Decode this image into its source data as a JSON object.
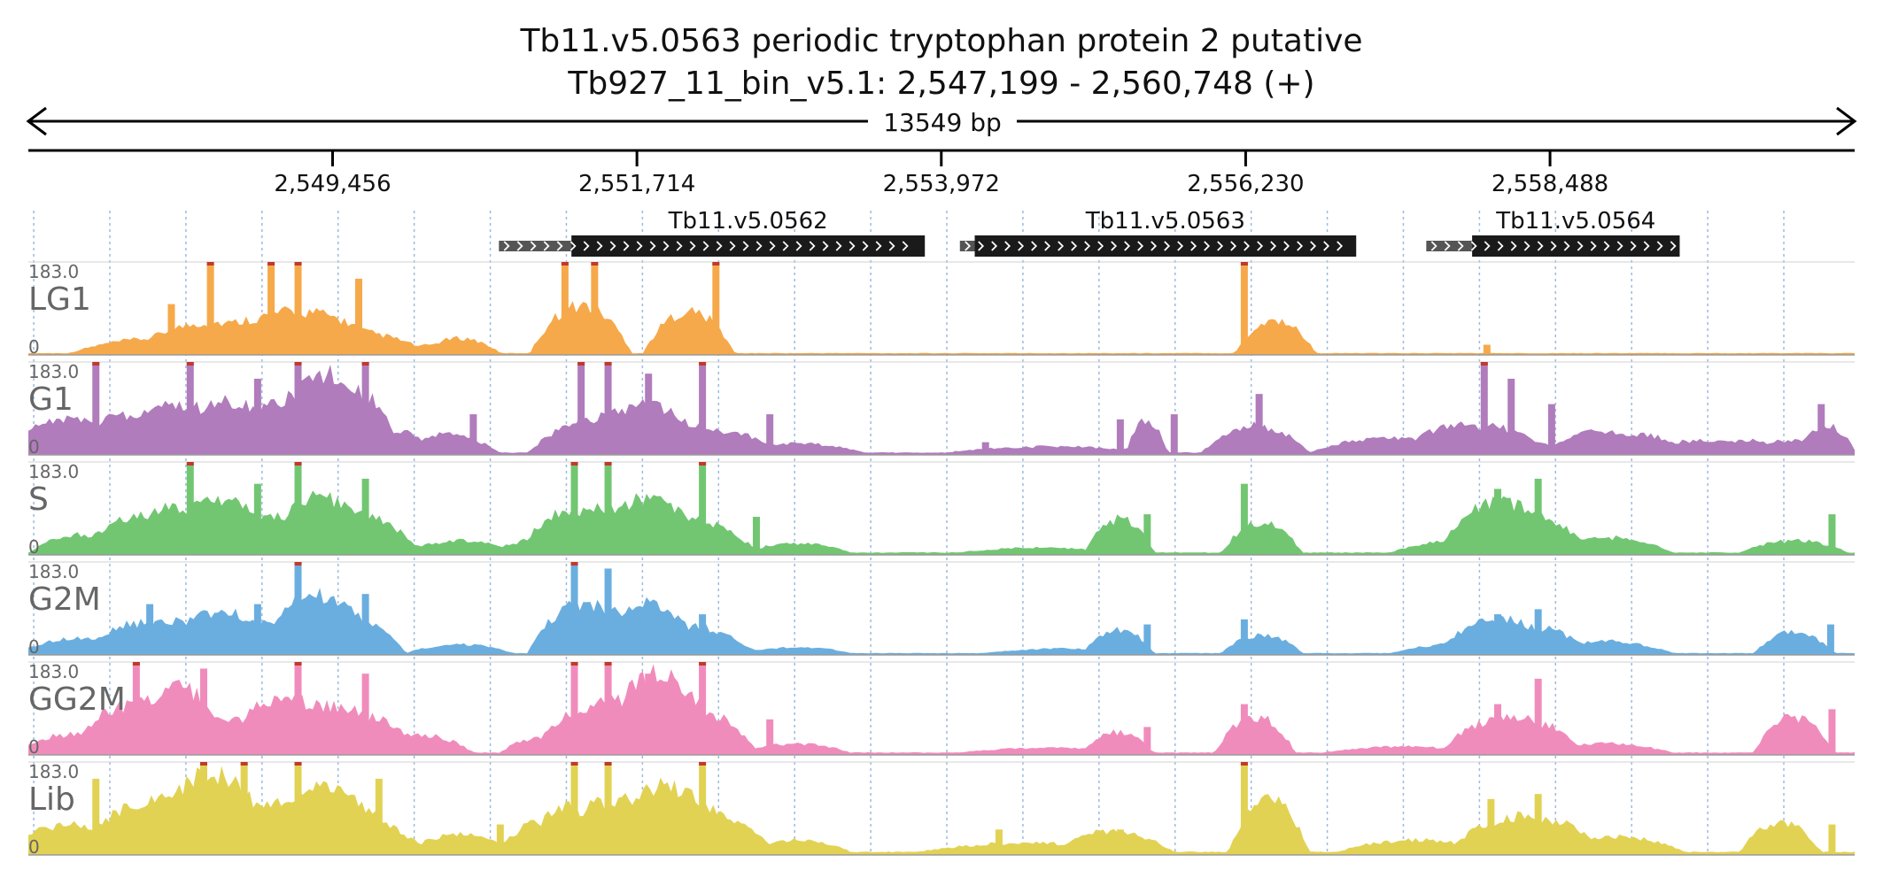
{
  "chart_data": {
    "type": "area",
    "title_line1": "Tb11.v5.0563  periodic tryptophan protein 2  putative",
    "title_line2": "Tb927_11_bin_v5.1: 2,547,199 - 2,560,748 (+)",
    "span_label": "13549 bp",
    "region": {
      "start": 2547199,
      "end": 2560748
    },
    "x_ticks": [
      {
        "pos": 2549456,
        "label": "2,549,456"
      },
      {
        "pos": 2551714,
        "label": "2,551,714"
      },
      {
        "pos": 2553972,
        "label": "2,553,972"
      },
      {
        "pos": 2556230,
        "label": "2,556,230"
      },
      {
        "pos": 2558488,
        "label": "2,558,488"
      }
    ],
    "genes": [
      {
        "name": "Tb11.v5.0562",
        "utr_start": 2550690,
        "start": 2551228,
        "end": 2553850
      },
      {
        "name": "Tb11.v5.0563",
        "utr_start": 2554110,
        "start": 2554220,
        "end": 2557050
      },
      {
        "name": "Tb11.v5.0564",
        "utr_start": 2557570,
        "start": 2557910,
        "end": 2559450
      }
    ],
    "ylim": [
      0,
      183.0
    ],
    "ymax_label": "183.0",
    "ymin_label": "0",
    "grid": true,
    "series": [
      {
        "name": "LG1",
        "color": "#f6a94a",
        "peaks": [
          [
            2548200,
            25,
            700
          ],
          [
            2548900,
            40,
            800
          ],
          [
            2549456,
            40,
            750
          ],
          [
            2550400,
            25,
            300
          ],
          [
            2551300,
            80,
            380
          ],
          [
            2552100,
            70,
            340
          ],
          [
            2556450,
            55,
            300
          ]
        ],
        "spikes": [
          [
            2548260,
            100
          ],
          [
            2548550,
            183
          ],
          [
            2549000,
            183
          ],
          [
            2549200,
            183
          ],
          [
            2549650,
            150
          ],
          [
            2551180,
            183
          ],
          [
            2551400,
            183
          ],
          [
            2552300,
            183
          ],
          [
            2556220,
            183
          ],
          [
            2558020,
            20
          ]
        ],
        "base": 3
      },
      {
        "name": "G1",
        "color": "#b07cbc",
        "peaks": [
          [
            2547500,
            55,
            500
          ],
          [
            2548300,
            80,
            600
          ],
          [
            2549200,
            85,
            700
          ],
          [
            2549600,
            60,
            500
          ],
          [
            2550300,
            30,
            400
          ],
          [
            2551500,
            60,
            600
          ],
          [
            2552100,
            45,
            600
          ],
          [
            2552900,
            15,
            500
          ],
          [
            2554800,
            10,
            800
          ],
          [
            2556300,
            45,
            400
          ],
          [
            2557300,
            25,
            600
          ],
          [
            2558000,
            45,
            500
          ],
          [
            2558900,
            35,
            500
          ],
          [
            2559600,
            20,
            500
          ],
          [
            2560300,
            20,
            500
          ],
          [
            2560550,
            30,
            200
          ],
          [
            2555500,
            50,
            150
          ]
        ],
        "spikes": [
          [
            2547700,
            183
          ],
          [
            2548400,
            183
          ],
          [
            2548900,
            150
          ],
          [
            2549200,
            183
          ],
          [
            2549700,
            183
          ],
          [
            2550500,
            80
          ],
          [
            2551300,
            183
          ],
          [
            2551500,
            183
          ],
          [
            2551800,
            160
          ],
          [
            2552200,
            183
          ],
          [
            2552700,
            80
          ],
          [
            2553200,
            10
          ],
          [
            2554300,
            25
          ],
          [
            2555300,
            70
          ],
          [
            2555700,
            80
          ],
          [
            2556330,
            120
          ],
          [
            2557600,
            20
          ],
          [
            2558000,
            183
          ],
          [
            2558200,
            150
          ],
          [
            2558500,
            100
          ],
          [
            2560500,
            100
          ]
        ],
        "base": 4
      },
      {
        "name": "S",
        "color": "#72c672",
        "peaks": [
          [
            2547600,
            30,
            400
          ],
          [
            2548300,
            75,
            600
          ],
          [
            2549000,
            60,
            600
          ],
          [
            2549600,
            70,
            500
          ],
          [
            2550400,
            20,
            400
          ],
          [
            2551000,
            25,
            300
          ],
          [
            2551500,
            75,
            600
          ],
          [
            2552100,
            55,
            500
          ],
          [
            2552900,
            15,
            400
          ],
          [
            2554700,
            8,
            600
          ],
          [
            2555300,
            55,
            250
          ],
          [
            2556350,
            50,
            300
          ],
          [
            2557800,
            20,
            500
          ],
          [
            2558200,
            75,
            500
          ],
          [
            2558900,
            25,
            500
          ],
          [
            2560300,
            20,
            400
          ]
        ],
        "spikes": [
          [
            2548400,
            183
          ],
          [
            2548900,
            140
          ],
          [
            2549200,
            183
          ],
          [
            2549700,
            150
          ],
          [
            2551250,
            183
          ],
          [
            2551500,
            183
          ],
          [
            2552200,
            183
          ],
          [
            2552600,
            75
          ],
          [
            2555500,
            80
          ],
          [
            2556220,
            140
          ],
          [
            2558100,
            130
          ],
          [
            2558400,
            150
          ],
          [
            2560580,
            80
          ]
        ],
        "base": 4
      },
      {
        "name": "G2M",
        "color": "#6aaee0",
        "peaks": [
          [
            2547600,
            25,
            500
          ],
          [
            2548300,
            55,
            600
          ],
          [
            2549000,
            50,
            600
          ],
          [
            2549500,
            70,
            500
          ],
          [
            2550400,
            15,
            400
          ],
          [
            2551200,
            25,
            300
          ],
          [
            2551500,
            70,
            600
          ],
          [
            2552100,
            45,
            500
          ],
          [
            2552900,
            10,
            400
          ],
          [
            2554900,
            8,
            600
          ],
          [
            2555300,
            35,
            250
          ],
          [
            2556350,
            30,
            300
          ],
          [
            2557800,
            15,
            500
          ],
          [
            2558200,
            50,
            500
          ],
          [
            2558900,
            20,
            500
          ],
          [
            2560300,
            35,
            300
          ]
        ],
        "spikes": [
          [
            2548100,
            100
          ],
          [
            2548900,
            100
          ],
          [
            2549200,
            183
          ],
          [
            2549700,
            120
          ],
          [
            2551250,
            183
          ],
          [
            2551500,
            170
          ],
          [
            2552200,
            80
          ],
          [
            2555500,
            60
          ],
          [
            2556220,
            70
          ],
          [
            2558100,
            80
          ],
          [
            2558400,
            90
          ],
          [
            2560570,
            60
          ]
        ],
        "base": 3
      },
      {
        "name": "GG2M",
        "color": "#f08cbc",
        "peaks": [
          [
            2547500,
            30,
            400
          ],
          [
            2548100,
            90,
            500
          ],
          [
            2548700,
            60,
            600
          ],
          [
            2549400,
            80,
            600
          ],
          [
            2550100,
            30,
            400
          ],
          [
            2551000,
            25,
            300
          ],
          [
            2551600,
            90,
            600
          ],
          [
            2552100,
            75,
            500
          ],
          [
            2552900,
            15,
            400
          ],
          [
            2554800,
            8,
            700
          ],
          [
            2555300,
            30,
            250
          ],
          [
            2556300,
            60,
            300
          ],
          [
            2557400,
            10,
            600
          ],
          [
            2558200,
            60,
            500
          ],
          [
            2558900,
            15,
            500
          ],
          [
            2560300,
            60,
            300
          ]
        ],
        "spikes": [
          [
            2548000,
            183
          ],
          [
            2548500,
            170
          ],
          [
            2549200,
            183
          ],
          [
            2549700,
            160
          ],
          [
            2551250,
            183
          ],
          [
            2551500,
            183
          ],
          [
            2551800,
            160
          ],
          [
            2552200,
            183
          ],
          [
            2552700,
            70
          ],
          [
            2555500,
            55
          ],
          [
            2556220,
            100
          ],
          [
            2558100,
            100
          ],
          [
            2558400,
            150
          ],
          [
            2560580,
            90
          ]
        ],
        "base": 4
      },
      {
        "name": "Lib",
        "color": "#e2d254",
        "peaks": [
          [
            2547500,
            45,
            500
          ],
          [
            2548300,
            100,
            600
          ],
          [
            2549000,
            80,
            700
          ],
          [
            2549600,
            70,
            500
          ],
          [
            2550400,
            30,
            400
          ],
          [
            2551000,
            50,
            300
          ],
          [
            2551600,
            90,
            600
          ],
          [
            2552200,
            70,
            500
          ],
          [
            2552900,
            20,
            400
          ],
          [
            2554600,
            15,
            800
          ],
          [
            2555300,
            30,
            400
          ],
          [
            2556400,
            90,
            300
          ],
          [
            2557500,
            20,
            600
          ],
          [
            2558300,
            60,
            500
          ],
          [
            2559000,
            25,
            500
          ],
          [
            2560200,
            50,
            300
          ]
        ],
        "spikes": [
          [
            2547700,
            150
          ],
          [
            2548500,
            183
          ],
          [
            2548800,
            183
          ],
          [
            2549200,
            183
          ],
          [
            2549800,
            150
          ],
          [
            2550700,
            60
          ],
          [
            2551250,
            183
          ],
          [
            2551500,
            183
          ],
          [
            2552200,
            183
          ],
          [
            2554400,
            50
          ],
          [
            2555300,
            50
          ],
          [
            2556220,
            183
          ],
          [
            2558050,
            110
          ],
          [
            2558400,
            120
          ],
          [
            2560580,
            60
          ]
        ],
        "base": 5
      }
    ]
  }
}
